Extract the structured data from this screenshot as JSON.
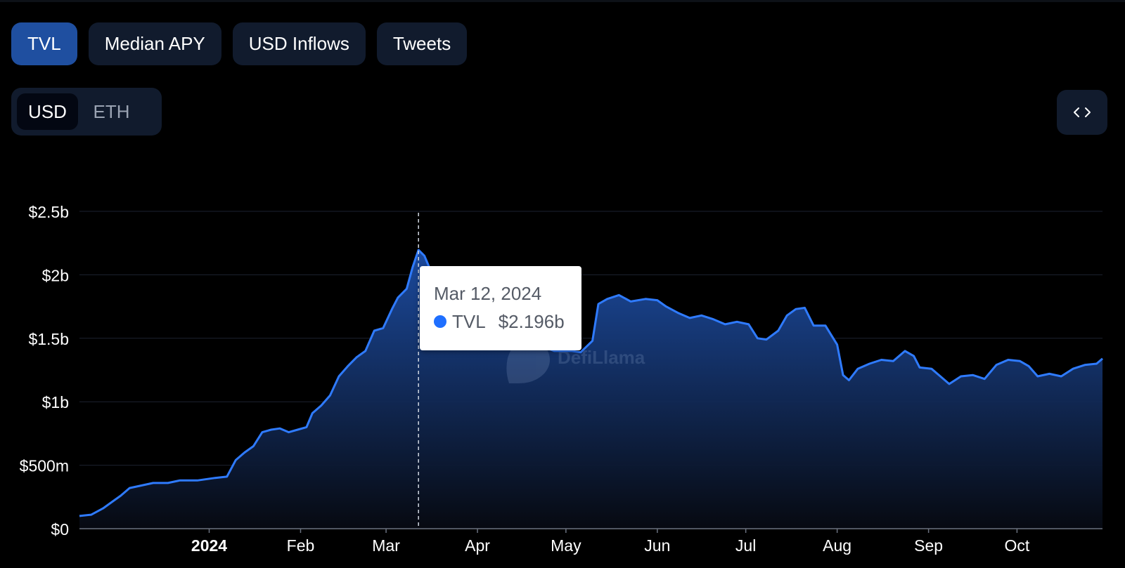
{
  "tabs": [
    {
      "label": "TVL",
      "active": true
    },
    {
      "label": "Median APY",
      "active": false
    },
    {
      "label": "USD Inflows",
      "active": false
    },
    {
      "label": "Tweets",
      "active": false
    }
  ],
  "currency_toggle": {
    "options": [
      {
        "label": "USD",
        "active": true
      },
      {
        "label": "ETH",
        "active": false
      }
    ]
  },
  "embed_button": {
    "icon": "code-brackets-icon",
    "glyph": "‹ ›"
  },
  "watermark": {
    "text": "DefiLlama"
  },
  "tooltip": {
    "date": "Mar 12, 2024",
    "series": "TVL",
    "value": "$2.196b",
    "marker_color": "#1f6fff"
  },
  "colors": {
    "line": "#2f7bff",
    "area_top": "#1d4ea6",
    "background": "#000000",
    "active_tab": "#1f4fa0",
    "inactive_tab": "#111b2d"
  },
  "chart_data": {
    "type": "area",
    "series": [
      {
        "name": "TVL",
        "unit": "USD billions",
        "points": [
          [
            "2023-11-18",
            0.1
          ],
          [
            "2023-11-22",
            0.11
          ],
          [
            "2023-11-26",
            0.16
          ],
          [
            "2023-11-29",
            0.21
          ],
          [
            "2023-12-02",
            0.26
          ],
          [
            "2023-12-05",
            0.32
          ],
          [
            "2023-12-09",
            0.34
          ],
          [
            "2023-12-13",
            0.36
          ],
          [
            "2023-12-18",
            0.36
          ],
          [
            "2023-12-22",
            0.38
          ],
          [
            "2023-12-28",
            0.38
          ],
          [
            "2024-01-03",
            0.4
          ],
          [
            "2024-01-07",
            0.41
          ],
          [
            "2024-01-10",
            0.54
          ],
          [
            "2024-01-13",
            0.6
          ],
          [
            "2024-01-16",
            0.65
          ],
          [
            "2024-01-19",
            0.76
          ],
          [
            "2024-01-22",
            0.78
          ],
          [
            "2024-01-25",
            0.79
          ],
          [
            "2024-01-28",
            0.76
          ],
          [
            "2024-01-31",
            0.78
          ],
          [
            "2024-02-03",
            0.8
          ],
          [
            "2024-02-05",
            0.91
          ],
          [
            "2024-02-08",
            0.97
          ],
          [
            "2024-02-11",
            1.05
          ],
          [
            "2024-02-14",
            1.2
          ],
          [
            "2024-02-17",
            1.28
          ],
          [
            "2024-02-20",
            1.35
          ],
          [
            "2024-02-23",
            1.4
          ],
          [
            "2024-02-26",
            1.56
          ],
          [
            "2024-02-29",
            1.58
          ],
          [
            "2024-03-03",
            1.73
          ],
          [
            "2024-03-05",
            1.82
          ],
          [
            "2024-03-08",
            1.89
          ],
          [
            "2024-03-10",
            2.06
          ],
          [
            "2024-03-12",
            2.196
          ],
          [
            "2024-03-14",
            2.15
          ],
          [
            "2024-03-16",
            2.04
          ],
          [
            "2024-03-18",
            1.94
          ],
          [
            "2024-03-20",
            1.75
          ],
          [
            "2024-04-27",
            1.4
          ],
          [
            "2024-05-03",
            1.4
          ],
          [
            "2024-05-06",
            1.39
          ],
          [
            "2024-05-10",
            1.48
          ],
          [
            "2024-05-12",
            1.77
          ],
          [
            "2024-05-15",
            1.81
          ],
          [
            "2024-05-19",
            1.84
          ],
          [
            "2024-05-23",
            1.79
          ],
          [
            "2024-05-28",
            1.81
          ],
          [
            "2024-06-01",
            1.8
          ],
          [
            "2024-06-04",
            1.75
          ],
          [
            "2024-06-08",
            1.7
          ],
          [
            "2024-06-12",
            1.66
          ],
          [
            "2024-06-16",
            1.68
          ],
          [
            "2024-06-20",
            1.65
          ],
          [
            "2024-06-24",
            1.61
          ],
          [
            "2024-06-28",
            1.63
          ],
          [
            "2024-07-02",
            1.61
          ],
          [
            "2024-07-05",
            1.5
          ],
          [
            "2024-07-08",
            1.49
          ],
          [
            "2024-07-12",
            1.56
          ],
          [
            "2024-07-15",
            1.68
          ],
          [
            "2024-07-18",
            1.73
          ],
          [
            "2024-07-21",
            1.74
          ],
          [
            "2024-07-24",
            1.6
          ],
          [
            "2024-07-28",
            1.6
          ],
          [
            "2024-08-01",
            1.45
          ],
          [
            "2024-08-03",
            1.21
          ],
          [
            "2024-08-05",
            1.17
          ],
          [
            "2024-08-08",
            1.26
          ],
          [
            "2024-08-12",
            1.3
          ],
          [
            "2024-08-16",
            1.33
          ],
          [
            "2024-08-20",
            1.32
          ],
          [
            "2024-08-24",
            1.4
          ],
          [
            "2024-08-27",
            1.36
          ],
          [
            "2024-08-29",
            1.27
          ],
          [
            "2024-09-02",
            1.26
          ],
          [
            "2024-09-05",
            1.2
          ],
          [
            "2024-09-08",
            1.14
          ],
          [
            "2024-09-12",
            1.2
          ],
          [
            "2024-09-16",
            1.21
          ],
          [
            "2024-09-20",
            1.18
          ],
          [
            "2024-09-24",
            1.29
          ],
          [
            "2024-09-28",
            1.33
          ],
          [
            "2024-10-02",
            1.32
          ],
          [
            "2024-10-05",
            1.28
          ],
          [
            "2024-10-08",
            1.2
          ],
          [
            "2024-10-12",
            1.22
          ],
          [
            "2024-10-16",
            1.2
          ],
          [
            "2024-10-20",
            1.26
          ],
          [
            "2024-10-24",
            1.29
          ],
          [
            "2024-10-28",
            1.3
          ],
          [
            "2024-10-30",
            1.34
          ]
        ]
      }
    ],
    "xlim": [
      "2023-11-18",
      "2024-10-30"
    ],
    "ylim": [
      0,
      2.5
    ],
    "y_ticks": [
      {
        "value": 0,
        "label": "$0"
      },
      {
        "value": 0.5,
        "label": "$500m"
      },
      {
        "value": 1.0,
        "label": "$1b"
      },
      {
        "value": 1.5,
        "label": "$1.5b"
      },
      {
        "value": 2.0,
        "label": "$2b"
      },
      {
        "value": 2.5,
        "label": "$2.5b"
      }
    ],
    "x_ticks": [
      {
        "date": "2024-01-01",
        "label": "2024",
        "bold": true
      },
      {
        "date": "2024-02-01",
        "label": "Feb"
      },
      {
        "date": "2024-03-01",
        "label": "Mar"
      },
      {
        "date": "2024-04-01",
        "label": "Apr"
      },
      {
        "date": "2024-05-01",
        "label": "May"
      },
      {
        "date": "2024-06-01",
        "label": "Jun"
      },
      {
        "date": "2024-07-01",
        "label": "Jul"
      },
      {
        "date": "2024-08-01",
        "label": "Aug"
      },
      {
        "date": "2024-09-01",
        "label": "Sep"
      },
      {
        "date": "2024-10-01",
        "label": "Oct"
      }
    ],
    "hover_date": "2024-03-12",
    "grid": true,
    "legend": "none"
  }
}
